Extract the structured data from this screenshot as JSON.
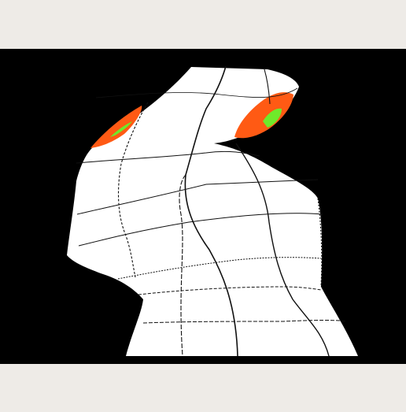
{
  "colors": {
    "window_background": "#eeebe7",
    "viewport_background": "#000000",
    "mesh_surface": "#ffffff",
    "mesh_grid_lines": "#111111",
    "highlight_primary": "#ff5a14",
    "highlight_secondary": "#6fea2a"
  },
  "viewport": {
    "content": "3d-bunny-mesh-render"
  }
}
